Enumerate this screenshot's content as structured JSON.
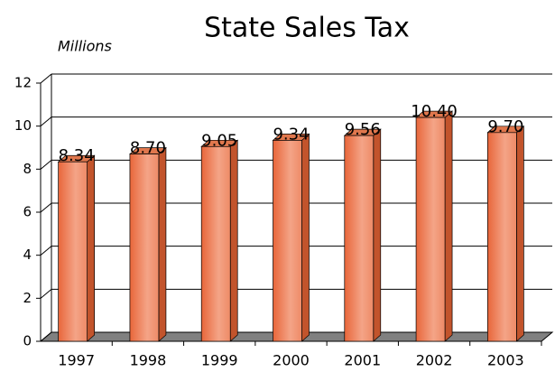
{
  "chart_data": {
    "type": "bar3d",
    "title": "State Sales Tax",
    "y_label": "Millions",
    "categories": [
      "1997",
      "1998",
      "1999",
      "2000",
      "2001",
      "2002",
      "2003"
    ],
    "values": [
      8.34,
      8.7,
      9.05,
      9.34,
      9.56,
      10.4,
      9.7
    ],
    "value_labels": [
      "8.34",
      "8.70",
      "9.05",
      "9.34",
      "9.56",
      "10.40",
      "9.70"
    ],
    "color": "#ef7f52",
    "ylim": [
      0,
      12
    ],
    "yticks": [
      0,
      2,
      4,
      6,
      8,
      10,
      12
    ],
    "grid": true
  }
}
